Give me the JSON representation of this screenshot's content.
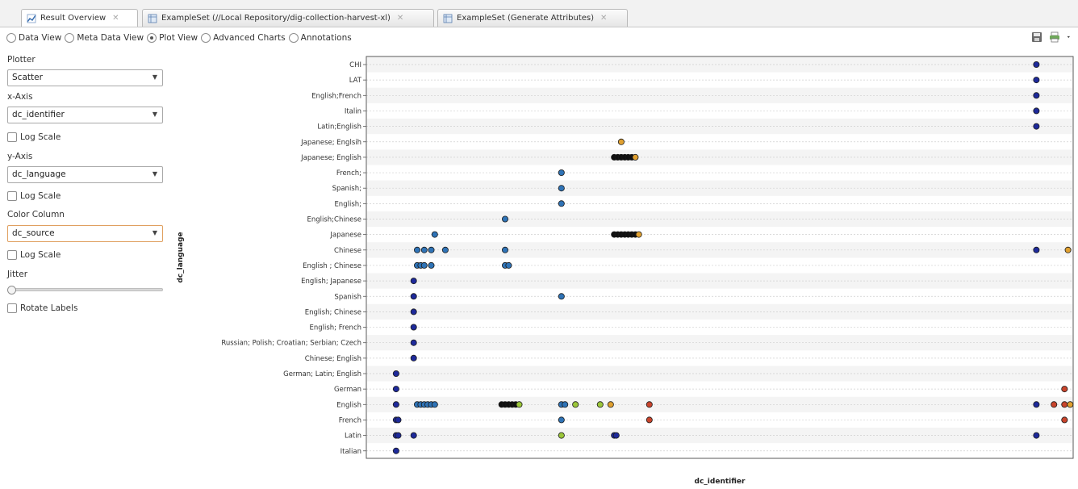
{
  "tabs": [
    {
      "label": "Result Overview",
      "icon": "result-overview-icon",
      "active": true
    },
    {
      "label": "ExampleSet (//Local Repository/dig-collection-harvest-xl)",
      "icon": "table-icon",
      "active": false
    },
    {
      "label": "ExampleSet (Generate Attributes)",
      "icon": "table-icon",
      "active": false
    }
  ],
  "view_modes": [
    {
      "label": "Data View",
      "checked": false
    },
    {
      "label": "Meta Data View",
      "checked": false
    },
    {
      "label": "Plot View",
      "checked": true
    },
    {
      "label": "Advanced Charts",
      "checked": false
    },
    {
      "label": "Annotations",
      "checked": false
    }
  ],
  "toolbar_icons": [
    "save-icon",
    "print-icon",
    "dropdown-arrow-icon"
  ],
  "sidebar": {
    "plotter_label": "Plotter",
    "plotter_value": "Scatter",
    "x_axis_label": "x-Axis",
    "x_axis_value": "dc_identifier",
    "x_log_label": "Log Scale",
    "y_axis_label": "y-Axis",
    "y_axis_value": "dc_language",
    "y_log_label": "Log Scale",
    "color_label": "Color Column",
    "color_value": "dc_source",
    "color_log_label": "Log Scale",
    "jitter_label": "Jitter",
    "jitter_level": 0,
    "rotate_label": "Rotate Labels"
  },
  "chart_data": {
    "type": "scatter",
    "xlabel": "dc_identifier",
    "ylabel": "dc_language",
    "grid": true,
    "x_tick_labels": false,
    "xlim": [
      0,
      100
    ],
    "categories": [
      "CHI",
      "LAT",
      "English;French",
      "Italin",
      "Latin;English",
      "Japanese; Englsih",
      "Japanese; English",
      "French;",
      "Spanish;",
      "English;",
      "English;Chinese",
      "Japanese",
      "Chinese",
      "English ; Chinese",
      "English; Japanese",
      "Spanish",
      "English; Chinese",
      "English; French",
      "Russian; Polish; Croatian; Serbian; Czech",
      "Chinese; English",
      "German; Latin; English",
      "German",
      "English",
      "French",
      "Latin",
      "Italian"
    ],
    "colors": {
      "navy": "#1e2a9a",
      "blue": "#2f73b6",
      "black": "#111111",
      "orange": "#e0a030",
      "green": "#9bc63a",
      "red": "#c8442c"
    },
    "points": [
      {
        "cat": "CHI",
        "x": [
          95.0
        ],
        "c": "navy"
      },
      {
        "cat": "LAT",
        "x": [
          95.0
        ],
        "c": "navy"
      },
      {
        "cat": "English;French",
        "x": [
          95.0
        ],
        "c": "navy"
      },
      {
        "cat": "Italin",
        "x": [
          95.0
        ],
        "c": "navy"
      },
      {
        "cat": "Latin;English",
        "x": [
          95.0
        ],
        "c": "navy"
      },
      {
        "cat": "Japanese; Englsih",
        "x": [
          36.0
        ],
        "c": "orange"
      },
      {
        "cat": "Japanese; English",
        "x": [
          35.0,
          35.5,
          36.0,
          36.5,
          37.0,
          37.5
        ],
        "c": "black"
      },
      {
        "cat": "Japanese; English",
        "x": [
          38.0
        ],
        "c": "orange"
      },
      {
        "cat": "French;",
        "x": [
          27.5
        ],
        "c": "blue"
      },
      {
        "cat": "Spanish;",
        "x": [
          27.5
        ],
        "c": "blue"
      },
      {
        "cat": "English;",
        "x": [
          27.5
        ],
        "c": "blue"
      },
      {
        "cat": "English;Chinese",
        "x": [
          19.5
        ],
        "c": "blue"
      },
      {
        "cat": "Japanese",
        "x": [
          9.5
        ],
        "c": "blue"
      },
      {
        "cat": "Japanese",
        "x": [
          35.0,
          35.5,
          36.0,
          36.5,
          37.0,
          37.5,
          38.0
        ],
        "c": "black"
      },
      {
        "cat": "Japanese",
        "x": [
          38.5
        ],
        "c": "orange"
      },
      {
        "cat": "Chinese",
        "x": [
          7.0,
          8.0,
          9.0
        ],
        "c": "blue"
      },
      {
        "cat": "Chinese",
        "x": [
          11.0
        ],
        "c": "blue"
      },
      {
        "cat": "Chinese",
        "x": [
          19.5
        ],
        "c": "blue"
      },
      {
        "cat": "Chinese",
        "x": [
          95.0
        ],
        "c": "navy"
      },
      {
        "cat": "Chinese",
        "x": [
          99.5
        ],
        "c": "orange"
      },
      {
        "cat": "English ; Chinese",
        "x": [
          7.0,
          7.5,
          8.0,
          9.0
        ],
        "c": "blue"
      },
      {
        "cat": "English ; Chinese",
        "x": [
          19.5,
          20.0
        ],
        "c": "blue"
      },
      {
        "cat": "English; Japanese",
        "x": [
          6.5
        ],
        "c": "navy"
      },
      {
        "cat": "Spanish",
        "x": [
          6.5
        ],
        "c": "navy"
      },
      {
        "cat": "Spanish",
        "x": [
          27.5
        ],
        "c": "blue"
      },
      {
        "cat": "English; Chinese",
        "x": [
          6.5
        ],
        "c": "navy"
      },
      {
        "cat": "English; French",
        "x": [
          6.5
        ],
        "c": "navy"
      },
      {
        "cat": "Russian; Polish; Croatian; Serbian; Czech",
        "x": [
          6.5
        ],
        "c": "navy"
      },
      {
        "cat": "Chinese; English",
        "x": [
          6.5
        ],
        "c": "navy"
      },
      {
        "cat": "German; Latin; English",
        "x": [
          4.0
        ],
        "c": "navy"
      },
      {
        "cat": "German",
        "x": [
          4.0
        ],
        "c": "navy"
      },
      {
        "cat": "German",
        "x": [
          99.0
        ],
        "c": "red"
      },
      {
        "cat": "English",
        "x": [
          4.0
        ],
        "c": "navy"
      },
      {
        "cat": "English",
        "x": [
          7.0,
          7.5,
          8.0,
          8.5,
          9.0,
          9.5
        ],
        "c": "blue"
      },
      {
        "cat": "English",
        "x": [
          19.0,
          19.5,
          20.0,
          20.5,
          21.0
        ],
        "c": "black"
      },
      {
        "cat": "English",
        "x": [
          21.5
        ],
        "c": "green"
      },
      {
        "cat": "English",
        "x": [
          27.5,
          28.0
        ],
        "c": "blue"
      },
      {
        "cat": "English",
        "x": [
          29.5
        ],
        "c": "green"
      },
      {
        "cat": "English",
        "x": [
          33.0
        ],
        "c": "green"
      },
      {
        "cat": "English",
        "x": [
          34.5
        ],
        "c": "orange"
      },
      {
        "cat": "English",
        "x": [
          40.0
        ],
        "c": "red"
      },
      {
        "cat": "English",
        "x": [
          95.0
        ],
        "c": "navy"
      },
      {
        "cat": "English",
        "x": [
          97.5
        ],
        "c": "red"
      },
      {
        "cat": "English",
        "x": [
          99.0
        ],
        "c": "red"
      },
      {
        "cat": "English",
        "x": [
          99.8
        ],
        "c": "orange"
      },
      {
        "cat": "French",
        "x": [
          4.0,
          4.3
        ],
        "c": "navy"
      },
      {
        "cat": "French",
        "x": [
          27.5
        ],
        "c": "blue"
      },
      {
        "cat": "French",
        "x": [
          40.0
        ],
        "c": "red"
      },
      {
        "cat": "French",
        "x": [
          99.0
        ],
        "c": "red"
      },
      {
        "cat": "Latin",
        "x": [
          4.0,
          4.3
        ],
        "c": "navy"
      },
      {
        "cat": "Latin",
        "x": [
          6.5
        ],
        "c": "navy"
      },
      {
        "cat": "Latin",
        "x": [
          27.5
        ],
        "c": "green"
      },
      {
        "cat": "Latin",
        "x": [
          35.0,
          35.3
        ],
        "c": "navy"
      },
      {
        "cat": "Latin",
        "x": [
          95.0
        ],
        "c": "navy"
      },
      {
        "cat": "Italian",
        "x": [
          4.0
        ],
        "c": "navy"
      }
    ]
  }
}
